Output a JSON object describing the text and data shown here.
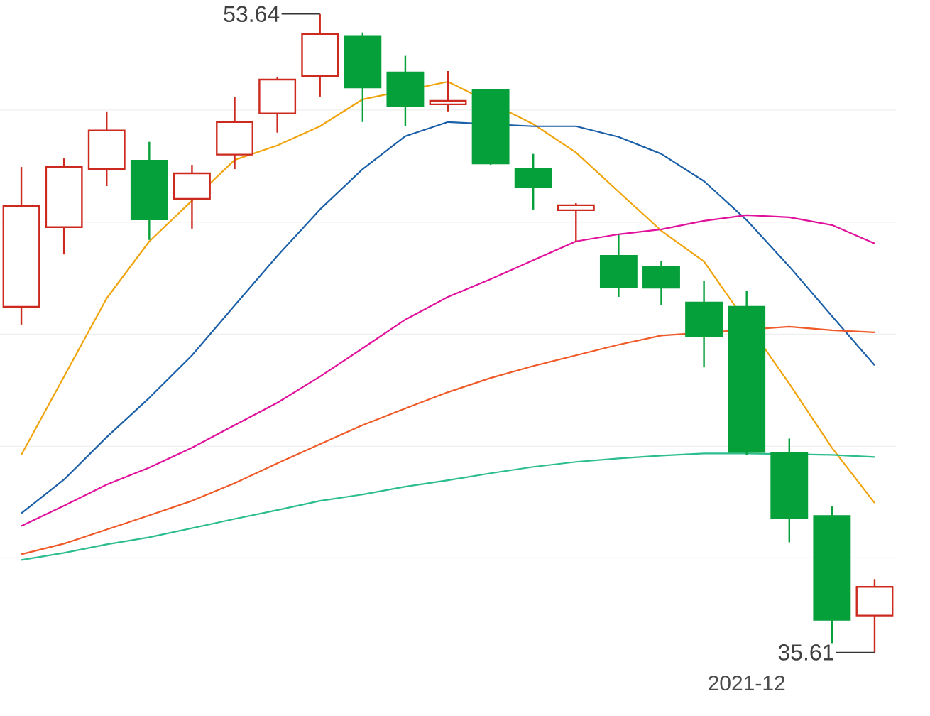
{
  "chart_data": {
    "type": "candlestick",
    "categories": [
      null,
      null,
      null,
      null,
      null,
      null,
      null,
      null,
      null,
      null,
      null,
      null,
      null,
      null,
      null,
      null,
      null,
      "2021-12",
      null,
      null,
      null
    ],
    "ohlc": [
      [
        45.37,
        49.32,
        44.87,
        48.22
      ],
      [
        47.62,
        49.56,
        46.85,
        49.32
      ],
      [
        49.26,
        50.89,
        48.78,
        50.35
      ],
      [
        49.5,
        50.03,
        47.26,
        47.84
      ],
      [
        48.42,
        49.38,
        47.58,
        49.14
      ],
      [
        49.67,
        51.29,
        49.26,
        50.59
      ],
      [
        50.83,
        51.87,
        50.29,
        51.79
      ],
      [
        51.89,
        53.64,
        51.31,
        53.08
      ],
      [
        53.02,
        53.12,
        50.59,
        51.57
      ],
      [
        51.99,
        52.46,
        50.47,
        51.03
      ],
      [
        51.09,
        52.03,
        50.89,
        51.19
      ],
      [
        51.49,
        51.51,
        49.38,
        49.42
      ],
      [
        49.28,
        49.69,
        48.12,
        48.76
      ],
      [
        48.1,
        48.3,
        47.22,
        48.24
      ],
      [
        46.81,
        47.4,
        45.65,
        45.93
      ],
      [
        46.51,
        46.67,
        45.41,
        45.91
      ],
      [
        45.49,
        46.11,
        43.66,
        44.54
      ],
      [
        45.37,
        45.83,
        41.19,
        41.27
      ],
      [
        41.23,
        41.65,
        38.72,
        39.4
      ],
      [
        39.46,
        39.73,
        35.87,
        36.53
      ],
      [
        36.65,
        37.68,
        35.61,
        37.46
      ]
    ],
    "colors": [
      "#cc2a1e",
      "#cc2a1e",
      "#cc2a1e",
      "#05a03a",
      "#cc2a1e",
      "#cc2a1e",
      "#cc2a1e",
      "#cc2a1e",
      "#05a03a",
      "#05a03a",
      "#cc2a1e",
      "#05a03a",
      "#05a03a",
      "#cc2a1e",
      "#05a03a",
      "#05a03a",
      "#05a03a",
      "#05a03a",
      "#05a03a",
      "#05a03a",
      "#cc2a1e"
    ],
    "series": [
      {
        "type": "line",
        "color": "#f0a30a",
        "values": [
          41.19,
          43.4,
          45.61,
          47.22,
          null,
          49.52,
          49.93,
          50.47,
          51.23,
          null,
          51.73,
          null,
          50.53,
          49.73,
          48.62,
          47.52,
          46.65,
          null,
          43.2,
          41.39,
          39.83
        ]
      },
      {
        "type": "line",
        "color": "#1a5fa8",
        "values": [
          39.54,
          40.49,
          41.69,
          42.8,
          44.0,
          45.41,
          46.81,
          48.12,
          49.26,
          50.19,
          50.59,
          null,
          50.47,
          50.47,
          50.17,
          49.69,
          48.92,
          47.82,
          46.51,
          45.11,
          43.72
        ]
      },
      {
        "type": "line",
        "color": "#e0119b",
        "values": [
          39.18,
          39.75,
          40.35,
          40.83,
          41.39,
          42.03,
          42.66,
          43.4,
          44.2,
          45.01,
          45.65,
          46.15,
          46.69,
          47.22,
          47.42,
          47.56,
          47.8,
          47.96,
          47.9,
          47.68,
          47.16
        ]
      },
      {
        "type": "line",
        "color": "#f05a28",
        "values": [
          38.38,
          38.68,
          39.08,
          39.48,
          39.89,
          40.39,
          40.95,
          41.49,
          42.03,
          42.5,
          42.96,
          43.36,
          43.7,
          44.0,
          44.3,
          44.56,
          null,
          null,
          44.81,
          44.71,
          44.65
        ]
      },
      {
        "type": "line",
        "color": "#2bbd8f",
        "values": [
          38.22,
          38.42,
          38.66,
          38.86,
          39.12,
          39.38,
          39.63,
          39.89,
          40.07,
          40.29,
          40.47,
          40.67,
          40.85,
          40.99,
          41.09,
          41.17,
          41.23,
          41.23,
          null,
          41.19,
          41.13
        ]
      }
    ],
    "yticks": [
      {
        "value": 38.28,
        "label": null
      },
      {
        "value": 41.43,
        "label": null
      },
      {
        "value": 44.6,
        "label": null
      },
      {
        "value": 47.76,
        "label": null
      },
      {
        "value": 50.93,
        "label": null
      }
    ],
    "grid": "y",
    "annotations": [
      "53.64",
      "35.61"
    ]
  }
}
